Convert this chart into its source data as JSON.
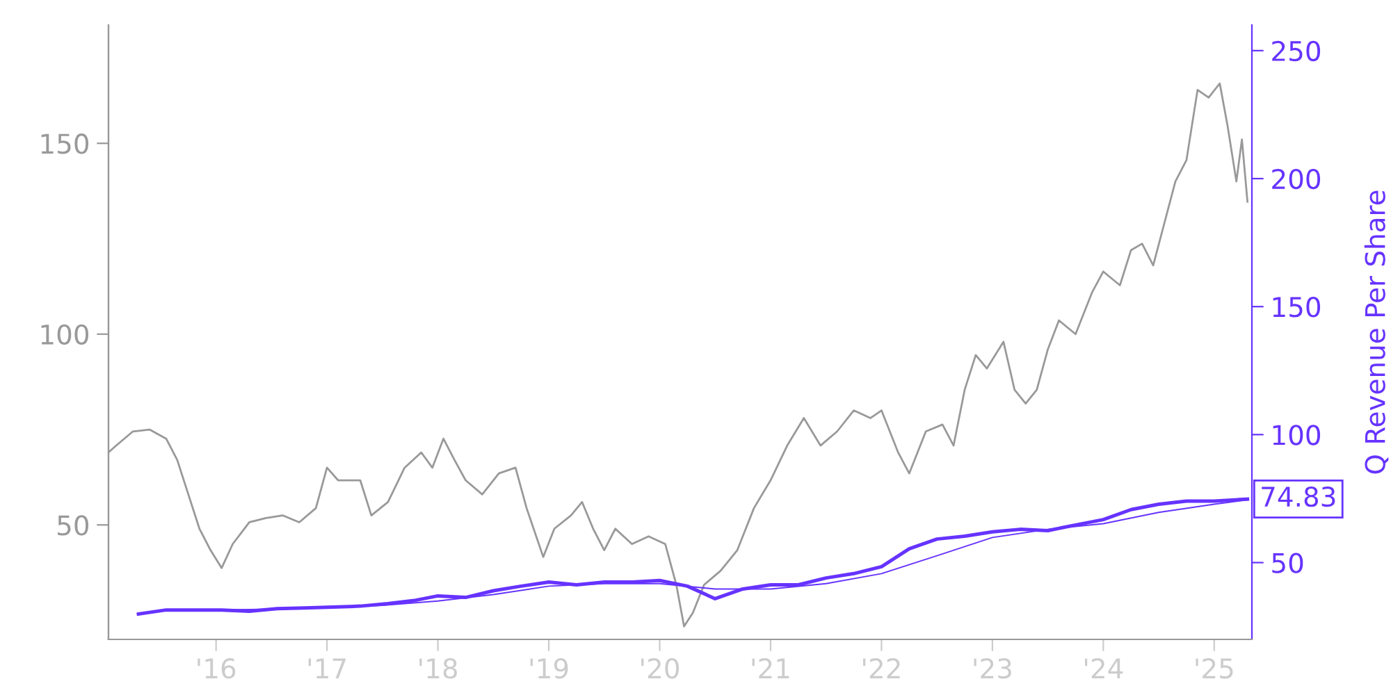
{
  "chart_data": {
    "type": "line",
    "y2label": "Q Revenue Per Share",
    "legend": false,
    "grid": false,
    "xlim": [
      2015.03,
      2025.34
    ],
    "ylim": [
      20,
      181
    ],
    "y2lim": [
      20,
      260
    ],
    "xticks": [
      {
        "value": 2016,
        "label": "'16"
      },
      {
        "value": 2017,
        "label": "'17"
      },
      {
        "value": 2018,
        "label": "'18"
      },
      {
        "value": 2019,
        "label": "'19"
      },
      {
        "value": 2020,
        "label": "'20"
      },
      {
        "value": 2021,
        "label": "'21"
      },
      {
        "value": 2022,
        "label": "'22"
      },
      {
        "value": 2023,
        "label": "'23"
      },
      {
        "value": 2024,
        "label": "'24"
      },
      {
        "value": 2025,
        "label": "'25"
      }
    ],
    "yticks": [
      50,
      100,
      150
    ],
    "y2ticks": [
      50,
      100,
      150,
      200,
      250
    ],
    "series": [
      {
        "color": "#999999",
        "x": [
          2015.03,
          2015.1,
          2015.25,
          2015.4,
          2015.55,
          2015.65,
          2015.75,
          2015.85,
          2015.95,
          2016.05,
          2016.15,
          2016.3,
          2016.45,
          2016.6,
          2016.75,
          2016.9,
          2017.0,
          2017.1,
          2017.3,
          2017.4,
          2017.55,
          2017.7,
          2017.85,
          2017.95,
          2018.05,
          2018.15,
          2018.25,
          2018.4,
          2018.55,
          2018.7,
          2018.8,
          2018.95,
          2019.05,
          2019.2,
          2019.3,
          2019.4,
          2019.5,
          2019.6,
          2019.75,
          2019.9,
          2020.05,
          2020.15,
          2020.22,
          2020.3,
          2020.4,
          2020.55,
          2020.7,
          2020.85,
          2021.0,
          2021.15,
          2021.3,
          2021.45,
          2021.6,
          2021.75,
          2021.9,
          2022.0,
          2022.15,
          2022.25,
          2022.4,
          2022.55,
          2022.65,
          2022.75,
          2022.85,
          2022.95,
          2023.1,
          2023.2,
          2023.3,
          2023.4,
          2023.5,
          2023.6,
          2023.75,
          2023.9,
          2024.0,
          2024.15,
          2024.25,
          2024.35,
          2024.45,
          2024.55,
          2024.65,
          2024.75,
          2024.85,
          2024.95,
          2025.05,
          2025.12,
          2025.2,
          2025.25,
          2025.3
        ],
        "values": [
          69,
          70.8,
          74.5,
          75,
          72.6,
          67,
          58,
          49,
          43.4,
          38.7,
          45,
          50.7,
          51.8,
          52.5,
          50.7,
          54.4,
          65,
          61.7,
          61.7,
          52.5,
          56,
          65,
          69,
          65,
          72.6,
          67,
          61.7,
          58,
          63.5,
          65,
          54.4,
          41.6,
          49,
          52.5,
          56,
          49,
          43.4,
          49,
          45,
          47,
          45,
          34.3,
          23.4,
          27,
          34.3,
          38,
          43.4,
          54.4,
          61.7,
          70.8,
          78,
          70.8,
          74.5,
          80,
          78,
          80,
          69,
          63.5,
          74.5,
          76.3,
          70.8,
          85.4,
          94.5,
          91,
          98,
          85.4,
          81.8,
          85.4,
          96,
          103.6,
          100,
          111,
          116.4,
          112.8,
          122,
          123.7,
          118,
          129,
          140,
          145.6,
          164,
          162,
          165.7,
          154.7,
          140,
          151,
          134.7
        ]
      },
      {
        "color": "#6633ff",
        "axis": "y2",
        "x": [
          2015.3,
          2015.55,
          2015.8,
          2016.05,
          2016.3,
          2016.55,
          2016.8,
          2017.05,
          2017.3,
          2017.55,
          2017.8,
          2018.0,
          2018.25,
          2018.5,
          2018.75,
          2019.0,
          2019.25,
          2019.5,
          2019.75,
          2020.0,
          2020.25,
          2020.5,
          2020.75,
          2021.0,
          2021.25,
          2021.5,
          2021.75,
          2022.0,
          2022.25,
          2022.5,
          2022.75,
          2023.0,
          2023.25,
          2023.5,
          2023.75,
          2024.0,
          2024.25,
          2024.5,
          2024.75,
          2025.0,
          2025.3
        ],
        "values": [
          29.9,
          31.5,
          31.5,
          31.5,
          31,
          32,
          32.3,
          32.6,
          33,
          34,
          35.3,
          37,
          36.4,
          39,
          40.8,
          42.4,
          41.3,
          42.4,
          42.4,
          43,
          40.8,
          35.9,
          39.7,
          41.3,
          41.3,
          44,
          45.7,
          48.4,
          55.4,
          59.2,
          60.3,
          62,
          63,
          62.5,
          64.7,
          66.8,
          70.7,
          72.8,
          74,
          74,
          74.83
        ],
        "value_labels": [
          null,
          null,
          null,
          null,
          null,
          null,
          null,
          null,
          null,
          null,
          null,
          null,
          null,
          null,
          null,
          null,
          null,
          null,
          null,
          null,
          null,
          null,
          null,
          null,
          null,
          null,
          null,
          null,
          null,
          null,
          null,
          null,
          null,
          null,
          null,
          null,
          null,
          null,
          null,
          null,
          "74.83"
        ]
      },
      {
        "color": "#6633ff",
        "axis": "y2",
        "x": [
          2016.0,
          2016.5,
          2017.0,
          2017.5,
          2018.0,
          2018.5,
          2019.0,
          2019.5,
          2020.0,
          2020.5,
          2021.0,
          2021.5,
          2022.0,
          2022.5,
          2023.0,
          2023.5,
          2024.0,
          2024.5,
          2025.0,
          2025.3
        ],
        "values": [
          31.5,
          31.8,
          32.4,
          33.3,
          35,
          37.5,
          40.8,
          41.8,
          41.8,
          39.7,
          39.7,
          41.8,
          45.7,
          52.7,
          59.8,
          63,
          65.2,
          69.6,
          72.8,
          74.5
        ]
      }
    ]
  }
}
